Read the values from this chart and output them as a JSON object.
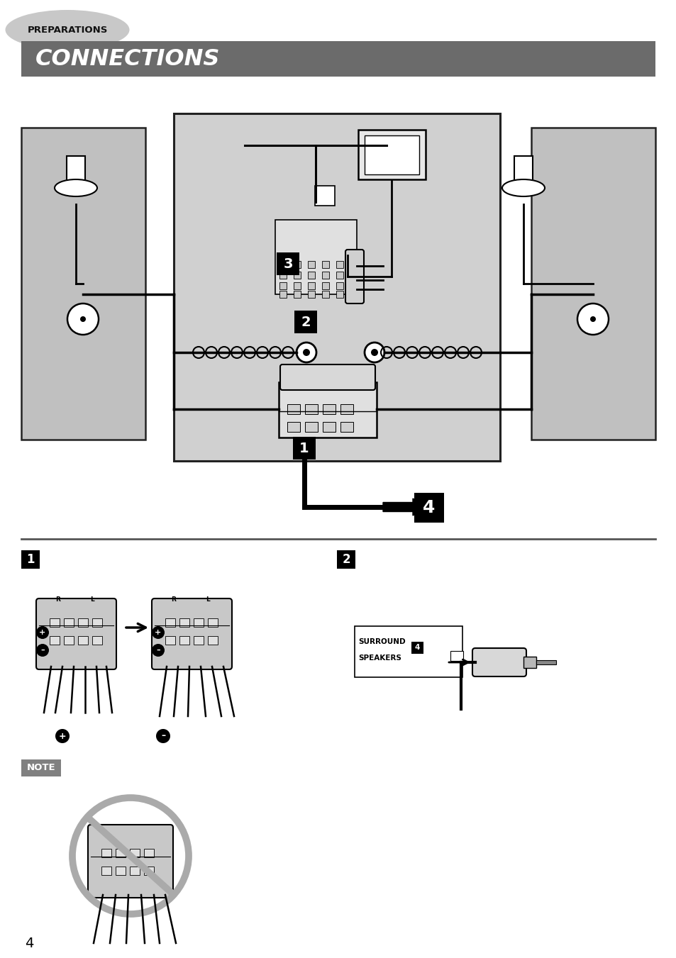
{
  "bg_color": "#ffffff",
  "header_bg": "#6b6b6b",
  "header_text": "CONNECTIONS",
  "header_text_color": "#ffffff",
  "prep_text": "PREPARATIONS",
  "prep_ellipse_color": "#c8c8c8",
  "note_bg": "#808080",
  "note_text": "NOTE",
  "page_number": "4",
  "divider_color": "#555555",
  "speaker_enc_color": "#c0c0c0",
  "main_unit_color": "#d0d0d0",
  "terminal_color": "#e0e0e0",
  "wire_color": "#000000",
  "prohib_color": "#aaaaaa",
  "plus_symbol": "+",
  "minus_symbol": "–"
}
